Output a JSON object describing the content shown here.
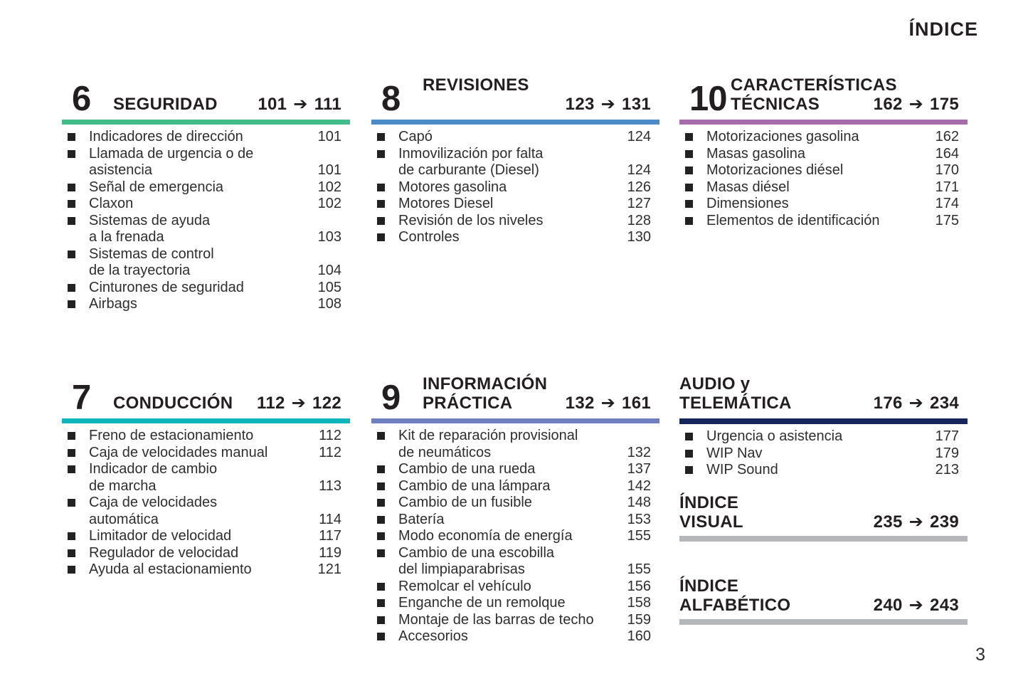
{
  "page": {
    "title": "ÍNDICE",
    "page_number": "3"
  },
  "icons": {
    "right_arrow": "➔"
  },
  "colors": {
    "seguridad": "#42bc8a",
    "revisiones": "#4a8bc8",
    "caracteristicas": "#a76baa",
    "conduccion": "#0fb6be",
    "informacion": "#6f7fc0",
    "audio": "#16265c",
    "gray_bar": "#b5b8ba"
  },
  "sections": {
    "seguridad": {
      "number": "6",
      "title_line1": "SEGURIDAD",
      "range_start": "101",
      "range_end": "111",
      "items": [
        {
          "label": "Indicadores de dirección",
          "page": "101"
        },
        {
          "label": "Llamada de urgencia o de\nasistencia",
          "page": "101"
        },
        {
          "label": "Señal de emergencia",
          "page": "102"
        },
        {
          "label": "Claxon",
          "page": "102"
        },
        {
          "label": "Sistemas de ayuda\na la frenada",
          "page": "103"
        },
        {
          "label": "Sistemas de control\nde la trayectoria",
          "page": "104"
        },
        {
          "label": "Cinturones de seguridad",
          "page": "105"
        },
        {
          "label": "Airbags",
          "page": "108"
        }
      ]
    },
    "revisiones": {
      "number": "8",
      "title_line1": "REVISIONES",
      "title_line2": "",
      "range_start": "123",
      "range_end": "131",
      "items": [
        {
          "label": "Capó",
          "page": "124"
        },
        {
          "label": "Inmovilización por falta\nde carburante (Diesel)",
          "page": "124"
        },
        {
          "label": "Motores gasolina",
          "page": "126"
        },
        {
          "label": "Motores Diesel",
          "page": "127"
        },
        {
          "label": "Revisión de los niveles",
          "page": "128"
        },
        {
          "label": "Controles",
          "page": "130"
        }
      ]
    },
    "caracteristicas": {
      "number": "10",
      "title_line1": "CARACTERÍSTICAS",
      "title_line2": "TÉCNICAS",
      "range_start": "162",
      "range_end": "175",
      "items": [
        {
          "label": "Motorizaciones gasolina",
          "page": "162"
        },
        {
          "label": "Masas gasolina",
          "page": "164"
        },
        {
          "label": "Motorizaciones diésel",
          "page": "170"
        },
        {
          "label": "Masas diésel",
          "page": "171"
        },
        {
          "label": "Dimensiones",
          "page": "174"
        },
        {
          "label": "Elementos de identificación",
          "page": "175"
        }
      ]
    },
    "conduccion": {
      "number": "7",
      "title_line1": "CONDUCCIÓN",
      "range_start": "112",
      "range_end": "122",
      "items": [
        {
          "label": "Freno de estacionamiento",
          "page": "112"
        },
        {
          "label": "Caja de velocidades manual",
          "page": "112"
        },
        {
          "label": "Indicador de cambio\nde marcha",
          "page": "113"
        },
        {
          "label": "Caja de velocidades\nautomática",
          "page": "114"
        },
        {
          "label": "Limitador de velocidad",
          "page": "117"
        },
        {
          "label": "Regulador de velocidad",
          "page": "119"
        },
        {
          "label": "Ayuda al estacionamiento",
          "page": "121"
        }
      ]
    },
    "informacion": {
      "number": "9",
      "title_line1": "INFORMACIÓN",
      "title_line2": "PRÁCTICA",
      "range_start": "132",
      "range_end": "161",
      "items": [
        {
          "label": "Kit de reparación provisional\nde neumáticos",
          "page": "132"
        },
        {
          "label": "Cambio de una rueda",
          "page": "137"
        },
        {
          "label": "Cambio de una lámpara",
          "page": "142"
        },
        {
          "label": "Cambio de un fusible",
          "page": "148"
        },
        {
          "label": "Batería",
          "page": "153"
        },
        {
          "label": "Modo economía de energía",
          "page": "155"
        },
        {
          "label": "Cambio de una escobilla\ndel limpiaparabrisas",
          "page": "155"
        },
        {
          "label": "Remolcar el vehículo",
          "page": "156"
        },
        {
          "label": "Enganche de un remolque",
          "page": "158"
        },
        {
          "label": "Montaje de las barras de techo",
          "page": "159"
        },
        {
          "label": "Accesorios",
          "page": "160"
        }
      ]
    },
    "audio": {
      "title_line1": "AUDIO y",
      "title_line2": "TELEMÁTICA",
      "range_start": "176",
      "range_end": "234",
      "items": [
        {
          "label": "Urgencia o asistencia",
          "page": "177"
        },
        {
          "label": "WIP Nav",
          "page": "179"
        },
        {
          "label": "WIP Sound",
          "page": "213"
        }
      ]
    },
    "indice_visual": {
      "title_line1": "ÍNDICE",
      "title_line2": "VISUAL",
      "range_start": "235",
      "range_end": "239"
    },
    "indice_alfabetico": {
      "title_line1": "ÍNDICE",
      "title_line2": "ALFABÉTICO",
      "range_start": "240",
      "range_end": "243"
    }
  }
}
